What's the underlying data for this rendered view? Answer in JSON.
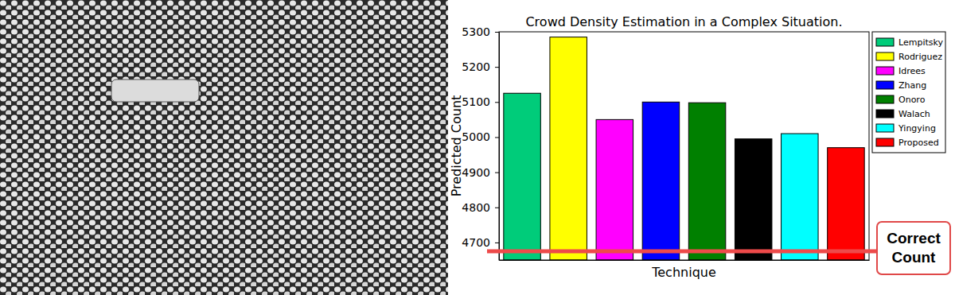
{
  "chart_data": {
    "type": "bar",
    "title": "Crowd Density Estimation in a Complex Situation.",
    "x_label": "Technique",
    "y_label": "Predicted Count",
    "categories": [
      "Lempitsky",
      "Rodriguez",
      "Idrees",
      "Zhang",
      "Onoro",
      "Walach",
      "Yingying",
      "Proposed"
    ],
    "values": [
      5125,
      5285,
      5050,
      5100,
      5098,
      4995,
      5010,
      4970
    ],
    "colors": [
      "#00cc7a",
      "#ffff00",
      "#ff00ff",
      "#0000ff",
      "#008000",
      "#000000",
      "#00ffff",
      "#ff0000"
    ],
    "ylim": [
      4650,
      5300
    ],
    "yticks": [
      4700,
      4800,
      4900,
      5000,
      5100,
      5200,
      5300
    ],
    "grid": false,
    "legend": "upper right",
    "tick_labels": "y",
    "annotations": [
      {
        "text": "Correct Count",
        "y": 4675
      }
    ]
  }
}
